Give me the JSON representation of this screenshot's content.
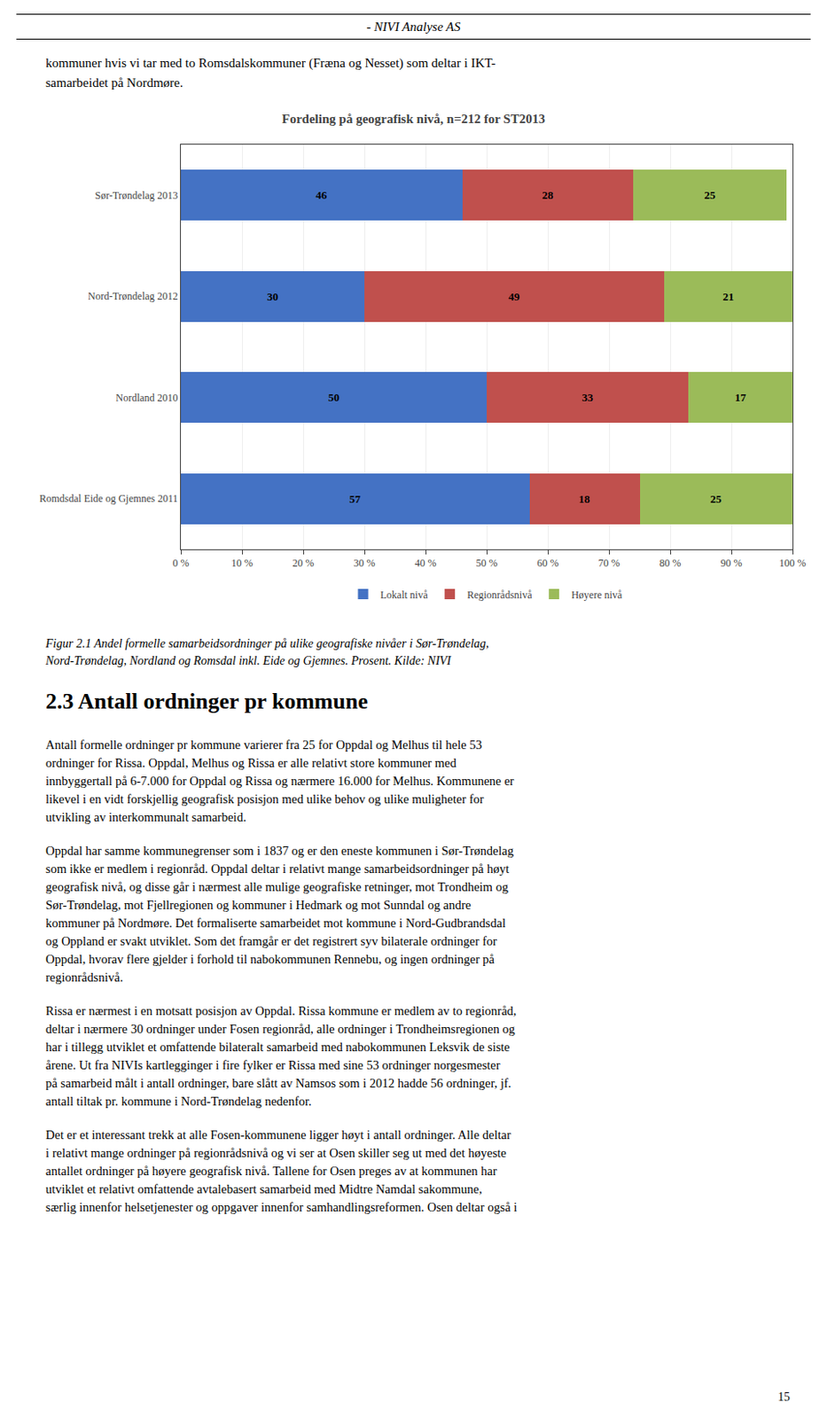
{
  "header_text": "- NIVI Analyse AS",
  "intro_text": "kommuner hvis vi tar med to Romsdalskommuner (Fræna og Nesset) som deltar i IKT-\nsamarbeidet på Nordmøre.",
  "chart_data": {
    "type": "bar",
    "orientation": "horizontal",
    "stacked": true,
    "title": "Fordeling på geografisk nivå, n=212 for ST2013",
    "categories": [
      "Sør-Trøndelag 2013",
      "Nord-Trøndelag 2012",
      "Nordland 2010",
      "Romdsdal Eide og Gjemnes 2011"
    ],
    "series": [
      {
        "name": "Lokalt nivå",
        "color": "#4472C4",
        "values": [
          46,
          30,
          50,
          57
        ]
      },
      {
        "name": "Regionrådsnivå",
        "color": "#C0504D",
        "values": [
          28,
          49,
          33,
          18
        ]
      },
      {
        "name": "Høyere nivå",
        "color": "#9BBB59",
        "values": [
          25,
          21,
          17,
          25
        ]
      }
    ],
    "xlim": [
      0,
      100
    ],
    "xticks": [
      {
        "value": 0,
        "label": "0 %"
      },
      {
        "value": 10,
        "label": "10 %"
      },
      {
        "value": 20,
        "label": "20 %"
      },
      {
        "value": 30,
        "label": "30 %"
      },
      {
        "value": 40,
        "label": "40 %"
      },
      {
        "value": 50,
        "label": "50 %"
      },
      {
        "value": 60,
        "label": "60 %"
      },
      {
        "value": 70,
        "label": "70 %"
      },
      {
        "value": 80,
        "label": "80 %"
      },
      {
        "value": 90,
        "label": "90 %"
      },
      {
        "value": 100,
        "label": "100 %"
      }
    ],
    "grid": true,
    "legend": "bottom",
    "data_labels": true
  },
  "figure_caption": "Figur 2.1 Andel formelle samarbeidsordninger på ulike geografiske nivåer i Sør-Trøndelag,\nNord-Trøndelag, Nordland og Romsdal inkl. Eide og Gjemnes. Prosent. Kilde: NIVI",
  "section_header": "2.3  Antall ordninger pr kommune",
  "body_text1": "Antall formelle ordninger pr kommune varierer fra 25 for Oppdal og Melhus til hele 53\nordninger for Rissa. Oppdal, Melhus og Rissa er alle relativt store kommuner med\ninnbyggertall på 6-7.000 for Oppdal og Rissa og nærmere 16.000 for Melhus. Kommunene er\nlikevel i en vidt forskjellig geografisk posisjon med ulike behov og ulike muligheter for\nutvikling av interkommunalt samarbeid.",
  "body_text2": "Oppdal har samme kommunegrenser som i 1837 og er den eneste kommunen i Sør-Trøndelag\nsom ikke er medlem i regionråd. Oppdal deltar i relativt mange samarbeidsordninger på høyt\ngeografisk nivå, og disse går i nærmest alle mulige geografiske retninger, mot Trondheim og\nSør-Trøndelag, mot Fjellregionen og kommuner i Hedmark og mot Sunndal og andre\nkommuner på Nordmøre. Det formaliserte samarbeidet mot kommune i Nord-Gudbrandsdal\nog Oppland er svakt utviklet. Som det framgår er det registrert syv bilaterale ordninger for\nOppdal, hvorav flere gjelder i forhold til nabokommunen Rennebu, og ingen ordninger på\nregionrådsnivå.",
  "body_text3": "Rissa er nærmest i en motsatt posisjon av Oppdal. Rissa kommune er medlem av to regionråd,\ndeltar i nærmere 30 ordninger under Fosen regionråd, alle ordninger i Trondheimsregionen og\nhar i tillegg utviklet et omfattende bilateralt samarbeid med nabokommunen Leksvik de siste\nårene.  Ut fra NIVIs kartlegginger i fire fylker er Rissa med sine 53 ordninger norgesmester\npå samarbeid målt i antall ordninger, bare slått av Namsos som i 2012 hadde 56 ordninger, jf.\nantall tiltak pr. kommune i Nord-Trøndelag nedenfor.",
  "body_text4": "Det er et interessant trekk at alle Fosen-kommunene ligger høyt i antall ordninger. Alle deltar\ni relativt mange ordninger på regionrådsnivå og vi ser at Osen skiller seg ut med det høyeste\nantallet ordninger på høyere geografisk nivå. Tallene for Osen preges av at kommunen har\nutviklet et relativt omfattende avtalebasert samarbeid med Midtre Namdal sakommune,\nsærlig innenfor helsetjenester og oppgaver innenfor samhandlingsreformen. Osen deltar også i",
  "page_number": "15"
}
